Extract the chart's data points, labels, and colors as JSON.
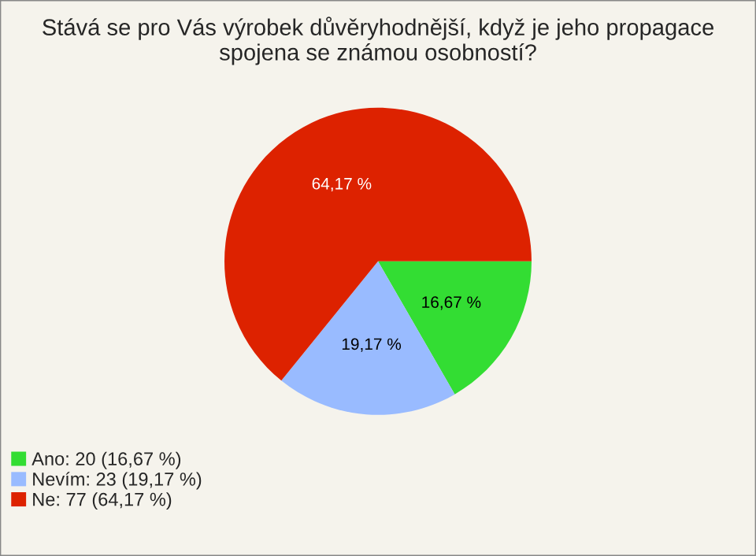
{
  "chart_data": {
    "type": "pie",
    "title": "Stává se pro Vás výrobek důvěryhodnější, když je jeho propagace\nspojena se známou osobností?",
    "categories": [
      "Ano: 20 (16,67 %)",
      "Nevím: 23 (19,17 %)",
      "Ne: 77 (64,17 %)"
    ],
    "values": [
      16.67,
      19.17,
      64.17
    ],
    "value_labels": [
      "16,67 %",
      "19,17 %",
      "64,17 %"
    ],
    "colors": [
      "#33dd33",
      "#99bbff",
      "#dd2200"
    ],
    "legend": "bottom left"
  }
}
